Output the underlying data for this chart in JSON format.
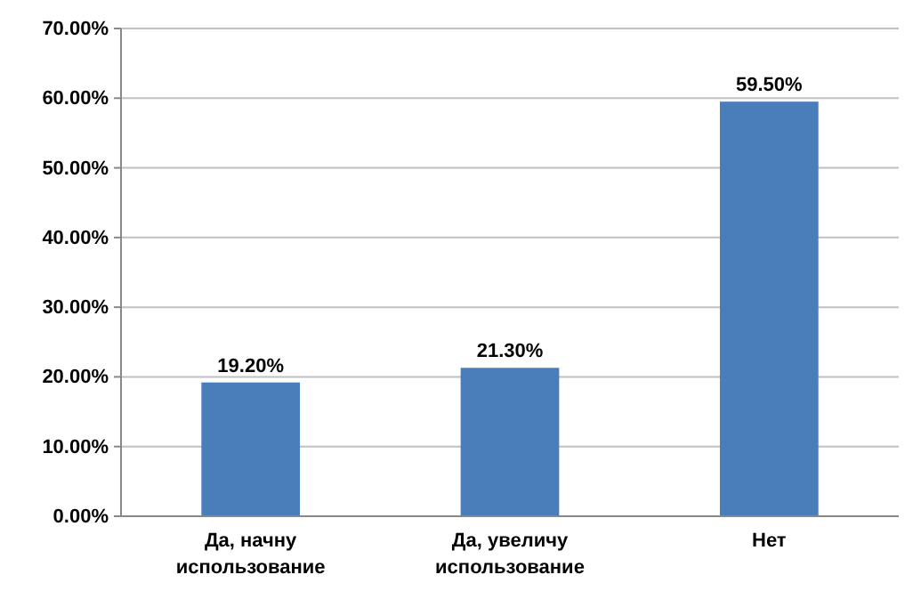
{
  "chart_data": {
    "type": "bar",
    "categories": [
      "Да, начну использование",
      "Да, увеличу использование",
      "Нет"
    ],
    "values": [
      19.2,
      21.3,
      59.5
    ],
    "color": "#4a7ebb",
    "value_labels": [
      "19.20%",
      "21.30%",
      "59.50%"
    ],
    "ylim": [
      0,
      70
    ],
    "yticks": [
      {
        "value": 0,
        "label": "0.00%"
      },
      {
        "value": 10,
        "label": "10.00%"
      },
      {
        "value": 20,
        "label": "20.00%"
      },
      {
        "value": 30,
        "label": "30.00%"
      },
      {
        "value": 40,
        "label": "40.00%"
      },
      {
        "value": 50,
        "label": "50.00%"
      },
      {
        "value": 60,
        "label": "60.00%"
      },
      {
        "value": 70,
        "label": "70.00%"
      }
    ],
    "grid": "y"
  }
}
